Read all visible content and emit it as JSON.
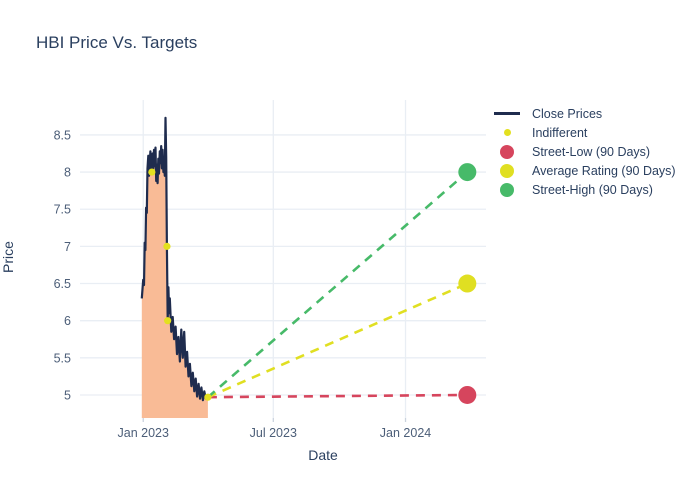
{
  "title": "HBI Price Vs. Targets",
  "colors": {
    "close_line": "#1f2c4e",
    "close_fill": "#f9bb96",
    "indifferent": "#e3e01f",
    "street_low": "#d6455d",
    "average_rating": "#e0df22",
    "street_high": "#47ba69",
    "grid": "#e9eef4",
    "tick_label": "#4c5e78",
    "title_text": "#2a3f5f"
  },
  "legend": {
    "items": [
      {
        "label": "Close Prices",
        "type": "line",
        "color": "#1f2c4e"
      },
      {
        "label": "Indifferent",
        "type": "dot",
        "color": "#e3e01f"
      },
      {
        "label": "Street-Low (90 Days)",
        "type": "circle",
        "color": "#d6455d"
      },
      {
        "label": "Average Rating (90 Days)",
        "type": "circle",
        "color": "#e0df22"
      },
      {
        "label": "Street-High (90 Days)",
        "type": "circle",
        "color": "#47ba69"
      }
    ]
  },
  "chart_data": {
    "type": "line",
    "title": "HBI Price Vs. Targets",
    "xlabel": "Date",
    "ylabel": "Price",
    "grid": true,
    "legend_position": "right",
    "x_range": [
      "2022-10-05",
      "2024-04-22"
    ],
    "y_range": [
      4.69,
      8.97
    ],
    "x_ticks": [
      {
        "label": "Jan 2023",
        "date": "2023-01-01"
      },
      {
        "label": "Jul 2023",
        "date": "2023-07-01"
      },
      {
        "label": "Jan 2024",
        "date": "2024-01-01"
      }
    ],
    "y_ticks": [
      5,
      5.5,
      6,
      6.5,
      7,
      7.5,
      8,
      8.5
    ],
    "series": {
      "close_prices": {
        "name": "Close Prices",
        "points": [
          [
            "2022-12-30",
            6.3
          ],
          [
            "2023-01-01",
            6.55
          ],
          [
            "2023-01-02",
            6.48
          ],
          [
            "2023-01-03",
            7.05
          ],
          [
            "2023-01-04",
            6.95
          ],
          [
            "2023-01-05",
            7.52
          ],
          [
            "2023-01-06",
            7.45
          ],
          [
            "2023-01-07",
            8.05
          ],
          [
            "2023-01-08",
            8.22
          ],
          [
            "2023-01-09",
            7.95
          ],
          [
            "2023-01-10",
            8.12
          ],
          [
            "2023-01-11",
            8.28
          ],
          [
            "2023-01-12",
            8.02
          ],
          [
            "2023-01-13",
            8.0
          ],
          [
            "2023-01-14",
            8.25
          ],
          [
            "2023-01-15",
            8.05
          ],
          [
            "2023-01-16",
            8.3
          ],
          [
            "2023-01-17",
            8.08
          ],
          [
            "2023-01-18",
            8.33
          ],
          [
            "2023-01-19",
            7.88
          ],
          [
            "2023-01-20",
            8.1
          ],
          [
            "2023-01-21",
            7.85
          ],
          [
            "2023-01-22",
            8.18
          ],
          [
            "2023-01-23",
            7.98
          ],
          [
            "2023-01-24",
            8.28
          ],
          [
            "2023-01-25",
            8.12
          ],
          [
            "2023-01-26",
            8.35
          ],
          [
            "2023-01-27",
            8.05
          ],
          [
            "2023-01-28",
            8.3
          ],
          [
            "2023-01-29",
            8.0
          ],
          [
            "2023-01-30",
            8.15
          ],
          [
            "2023-01-31",
            7.95
          ],
          [
            "2023-02-01",
            8.73
          ],
          [
            "2023-02-02",
            8.2
          ],
          [
            "2023-02-03",
            7.0
          ],
          [
            "2023-02-04",
            6.0
          ],
          [
            "2023-02-05",
            6.45
          ],
          [
            "2023-02-06",
            6.1
          ],
          [
            "2023-02-07",
            6.3
          ],
          [
            "2023-02-09",
            5.85
          ],
          [
            "2023-02-11",
            6.05
          ],
          [
            "2023-02-13",
            5.75
          ],
          [
            "2023-02-15",
            5.92
          ],
          [
            "2023-02-17",
            5.55
          ],
          [
            "2023-02-19",
            5.78
          ],
          [
            "2023-02-21",
            5.45
          ],
          [
            "2023-02-23",
            5.88
          ],
          [
            "2023-02-25",
            5.5
          ],
          [
            "2023-02-27",
            5.85
          ],
          [
            "2023-03-01",
            5.38
          ],
          [
            "2023-03-03",
            5.58
          ],
          [
            "2023-03-05",
            5.25
          ],
          [
            "2023-03-07",
            5.42
          ],
          [
            "2023-03-09",
            5.12
          ],
          [
            "2023-03-11",
            5.3
          ],
          [
            "2023-03-13",
            5.05
          ],
          [
            "2023-03-15",
            5.22
          ],
          [
            "2023-03-17",
            4.98
          ],
          [
            "2023-03-19",
            5.15
          ],
          [
            "2023-03-21",
            4.95
          ],
          [
            "2023-03-23",
            5.1
          ],
          [
            "2023-03-25",
            4.93
          ],
          [
            "2023-03-27",
            5.05
          ],
          [
            "2023-03-29",
            4.95
          ],
          [
            "2023-04-01",
            4.97
          ]
        ]
      },
      "indifferent": {
        "name": "Indifferent",
        "points": [
          [
            "2023-01-13",
            8.0
          ],
          [
            "2023-02-03",
            7.0
          ],
          [
            "2023-02-04",
            6.0
          ],
          [
            "2023-04-01",
            4.97
          ]
        ]
      },
      "targets": {
        "start_point": [
          "2023-04-01",
          4.97
        ],
        "target_date": "2024-03-27",
        "street_low": 5.0,
        "average_rating": 6.5,
        "street_high": 8.0
      }
    }
  }
}
